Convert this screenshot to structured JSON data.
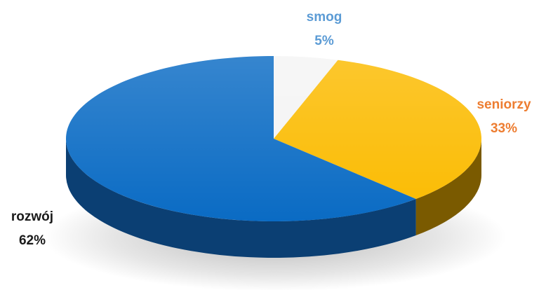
{
  "chart_data": {
    "type": "pie",
    "style": "3d",
    "title": "",
    "legend": "none",
    "slices": [
      {
        "label": "smog",
        "value": 5,
        "value_label": "5%",
        "color": "#f4f4f4",
        "side_color": "#c8c8c8",
        "label_color": "#5b9bd5"
      },
      {
        "label": "seniorzy",
        "value": 33,
        "value_label": "33%",
        "color": "#fbbb00",
        "side_color": "#7a5a00",
        "label_color": "#ed7d31"
      },
      {
        "label": "rozwój",
        "value": 62,
        "value_label": "62%",
        "color": "#0a6bc4",
        "side_color": "#0b3f73",
        "label_color": "#1a1a1a"
      }
    ]
  }
}
